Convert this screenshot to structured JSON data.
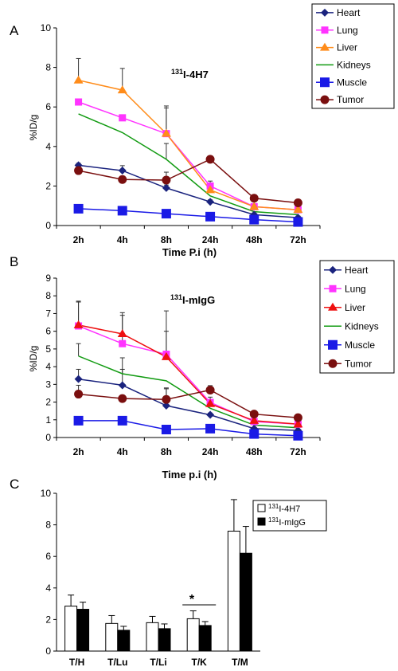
{
  "chart_data": [
    {
      "panel": "A",
      "type": "line",
      "title_sup": "131",
      "title_main": "I-4H7",
      "xlabel": "Time P.i (h)",
      "ylabel": "%ID/g",
      "categories": [
        "2h",
        "4h",
        "8h",
        "24h",
        "48h",
        "72h"
      ],
      "ylim": [
        0,
        10
      ],
      "yticks": [
        "0",
        "2",
        "4",
        "6",
        "8",
        "10"
      ],
      "legend_position": "top-right",
      "series": [
        {
          "name": "Heart",
          "color": "#1a237e",
          "marker": "diamond",
          "values": [
            3.05,
            2.78,
            1.9,
            1.2,
            0.55,
            0.4
          ],
          "errors": [
            0.1,
            0.25,
            0.15,
            0.1,
            0.08,
            0.08
          ]
        },
        {
          "name": "Lung",
          "color": "#ff33ff",
          "marker": "square",
          "values": [
            6.25,
            5.45,
            4.65,
            2.0,
            0.95,
            0.8
          ],
          "errors": [
            0,
            0,
            1.4,
            0.25,
            0.1,
            0.08
          ]
        },
        {
          "name": "Liver",
          "color": "#ff8c1a",
          "marker": "triangle",
          "values": [
            7.35,
            6.85,
            4.65,
            1.8,
            0.95,
            0.8
          ],
          "errors": [
            1.1,
            1.1,
            1.3,
            0.2,
            0.1,
            0.08
          ]
        },
        {
          "name": "Kidneys",
          "color": "#129b12",
          "marker": "none",
          "values": [
            5.65,
            4.7,
            3.35,
            1.5,
            0.7,
            0.55
          ],
          "errors": [
            0,
            0,
            0.8,
            0,
            0,
            0
          ]
        },
        {
          "name": "Muscle",
          "color": "#1a1ae6",
          "marker": "bigsquare",
          "values": [
            0.85,
            0.75,
            0.6,
            0.45,
            0.3,
            0.18
          ],
          "errors": [
            0,
            0,
            0,
            0,
            0,
            0
          ]
        },
        {
          "name": "Tumor",
          "color": "#7a0f0f",
          "marker": "circle",
          "values": [
            2.78,
            2.33,
            2.3,
            3.35,
            1.38,
            1.15
          ],
          "errors": [
            0,
            0,
            0.4,
            0,
            0.1,
            0.1
          ]
        }
      ]
    },
    {
      "panel": "B",
      "type": "line",
      "title_sup": "131",
      "title_main": "I-mIgG",
      "xlabel": "Time p.i (h)",
      "ylabel": "%ID/g",
      "categories": [
        "2h",
        "4h",
        "8h",
        "24h",
        "48h",
        "72h"
      ],
      "ylim": [
        0,
        9
      ],
      "yticks": [
        "0",
        "1",
        "2",
        "3",
        "4",
        "5",
        "6",
        "7",
        "8",
        "9"
      ],
      "legend_position": "top-right",
      "series": [
        {
          "name": "Heart",
          "color": "#1a237e",
          "marker": "diamond",
          "values": [
            3.3,
            2.95,
            1.8,
            1.28,
            0.5,
            0.4
          ],
          "errors": [
            0.55,
            0.9,
            1.0,
            0.1,
            0.05,
            0.05
          ]
        },
        {
          "name": "Lung",
          "color": "#ff33ff",
          "marker": "square",
          "values": [
            6.3,
            5.3,
            4.7,
            1.98,
            0.9,
            0.75
          ],
          "errors": [
            1.4,
            1.6,
            1.3,
            0.3,
            0.1,
            0.08
          ]
        },
        {
          "name": "Liver",
          "color": "#ee1111",
          "marker": "triangle",
          "values": [
            6.35,
            5.85,
            4.55,
            1.9,
            0.95,
            0.75
          ],
          "errors": [
            1.3,
            1.2,
            2.6,
            0.2,
            0.1,
            0.08
          ]
        },
        {
          "name": "Kidneys",
          "color": "#129b12",
          "marker": "none",
          "values": [
            4.6,
            3.6,
            3.2,
            1.65,
            0.7,
            0.55
          ],
          "errors": [
            0.7,
            0.9,
            0,
            0,
            0,
            0
          ]
        },
        {
          "name": "Muscle",
          "color": "#1a1ae6",
          "marker": "bigsquare",
          "values": [
            0.95,
            0.95,
            0.45,
            0.5,
            0.2,
            0.1
          ],
          "errors": [
            0,
            0,
            0,
            0,
            0,
            0
          ]
        },
        {
          "name": "Tumor",
          "color": "#7a0f0f",
          "marker": "circle",
          "values": [
            2.45,
            2.2,
            2.15,
            2.68,
            1.32,
            1.12
          ],
          "errors": [
            0.5,
            0,
            0.6,
            0.25,
            0.1,
            0.1
          ]
        }
      ]
    },
    {
      "panel": "C",
      "type": "bar",
      "categories": [
        "T/H",
        "T/Lu",
        "T/Li",
        "T/K",
        "T/M"
      ],
      "ylim": [
        0,
        10
      ],
      "yticks": [
        "0",
        "2",
        "4",
        "6",
        "8",
        "10"
      ],
      "legend_position": "top-right",
      "annotation": "*",
      "series": [
        {
          "name_sup": "131",
          "name_main": "I-4H7",
          "fill": "#ffffff",
          "values": [
            2.85,
            1.75,
            1.8,
            2.05,
            7.6
          ],
          "errors": [
            0.7,
            0.5,
            0.4,
            0.5,
            2.0
          ]
        },
        {
          "name_sup": "131",
          "name_main": "I-mIgG",
          "fill": "#000000",
          "values": [
            2.65,
            1.32,
            1.42,
            1.62,
            6.2
          ],
          "errors": [
            0.45,
            0.25,
            0.3,
            0.25,
            1.7
          ]
        }
      ]
    }
  ]
}
